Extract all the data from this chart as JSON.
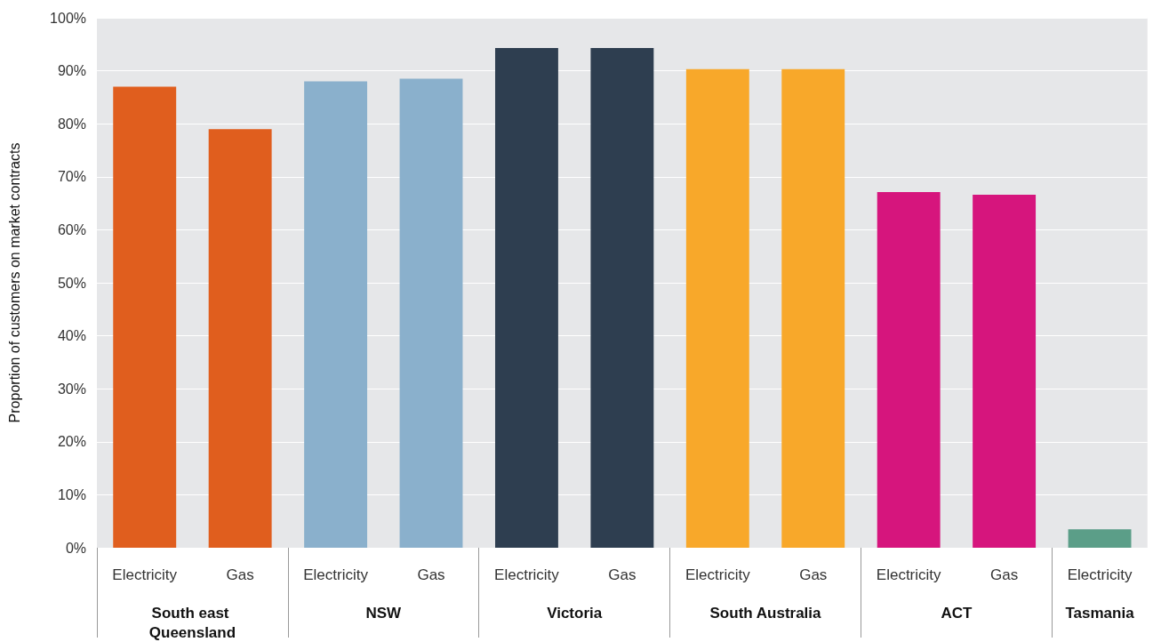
{
  "chart_data": {
    "type": "bar",
    "ylabel": "Proportion of customers on market contracts",
    "categories": [
      "Electricity",
      "Gas",
      "Electricity",
      "Gas",
      "Electricity",
      "Gas",
      "Electricity",
      "Gas",
      "Electricity",
      "Gas",
      "Electricity"
    ],
    "series": [
      {
        "color": "#e05e1e",
        "values": [
          87,
          79,
          null,
          null,
          null,
          null,
          null,
          null,
          null,
          null,
          null
        ]
      },
      {
        "color": "#8ab0cc",
        "values": [
          null,
          null,
          88,
          88.5,
          null,
          null,
          null,
          null,
          null,
          null,
          null
        ]
      },
      {
        "color": "#2e3e50",
        "values": [
          null,
          null,
          null,
          null,
          94.3,
          94.3,
          null,
          null,
          null,
          null,
          null
        ]
      },
      {
        "color": "#f8a82a",
        "values": [
          null,
          null,
          null,
          null,
          null,
          null,
          90.3,
          90.3,
          null,
          null,
          null
        ]
      },
      {
        "color": "#d6157d",
        "values": [
          null,
          null,
          null,
          null,
          null,
          null,
          null,
          null,
          67.1,
          66.6,
          null
        ]
      },
      {
        "color": "#5b9e88",
        "values": [
          null,
          null,
          null,
          null,
          null,
          null,
          null,
          null,
          null,
          null,
          3.5
        ]
      }
    ],
    "ylim": [
      0,
      100
    ],
    "yticks": [
      {
        "value": 0,
        "label": "0%"
      },
      {
        "value": 10,
        "label": "10%"
      },
      {
        "value": 20,
        "label": "20%"
      },
      {
        "value": 30,
        "label": "30%"
      },
      {
        "value": 40,
        "label": "40%"
      },
      {
        "value": 50,
        "label": "50%"
      },
      {
        "value": 60,
        "label": "60%"
      },
      {
        "value": 70,
        "label": "70%"
      },
      {
        "value": 80,
        "label": "80%"
      },
      {
        "value": 90,
        "label": "90%"
      },
      {
        "value": 100,
        "label": "100%"
      }
    ],
    "annotations": [
      "South east Queensland",
      "NSW",
      "Victoria",
      "South Australia",
      "ACT",
      "Tasmania"
    ],
    "grid": "y"
  }
}
